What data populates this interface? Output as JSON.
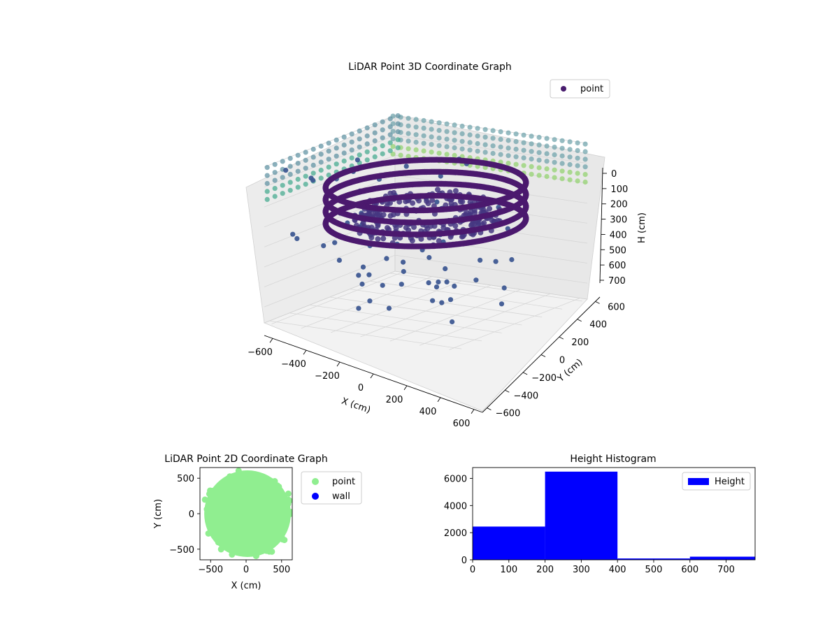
{
  "figure": {
    "background": "#ffffff"
  },
  "chart_data": [
    {
      "type": "scatter",
      "projection": "3d",
      "title": "LiDAR Point 3D Coordinate Graph",
      "xlabel": "X (cm)",
      "ylabel": "Y (cm)",
      "zlabel": "H (cm)",
      "x_ticks": [
        -600,
        -400,
        -200,
        0,
        200,
        400,
        600
      ],
      "y_ticks": [
        -600,
        -400,
        -200,
        0,
        200,
        400,
        600
      ],
      "z_ticks": [
        0,
        100,
        200,
        300,
        400,
        500,
        600,
        700
      ],
      "xlim": [
        -650,
        650
      ],
      "ylim": [
        -650,
        650
      ],
      "zlim": [
        0,
        780
      ],
      "z_axis_inverted": true,
      "colormap": "viridis",
      "legend": {
        "entries": [
          "point"
        ],
        "placement": "upper-right",
        "marker_color": "#481c6e"
      },
      "series": [
        {
          "name": "point",
          "shape": "ring",
          "radius": 560,
          "height_range": [
            150,
            330
          ],
          "color": "#4b1a6e"
        },
        {
          "name": "point",
          "shape": "ring",
          "radius": 420,
          "height_range": [
            260,
            360
          ],
          "color": "#453781"
        },
        {
          "name": "point",
          "shape": "scattered",
          "height_range": [
            0,
            700
          ],
          "color": "#3e5892"
        },
        {
          "name": "point",
          "shape": "wall-columns",
          "height_range": [
            0,
            200
          ],
          "color": "#6a9fa8"
        }
      ]
    },
    {
      "type": "scatter",
      "title": "LiDAR Point 2D Coordinate Graph",
      "xlabel": "X (cm)",
      "ylabel": "Y (cm)",
      "x_ticks": [
        -500,
        0,
        500
      ],
      "y_ticks": [
        -500,
        0,
        500
      ],
      "xlim": [
        -650,
        650
      ],
      "ylim": [
        -650,
        650
      ],
      "legend": {
        "placement": "outside-right",
        "entries": [
          {
            "name": "point",
            "color": "#90ee90"
          },
          {
            "name": "wall",
            "color": "#0000ff"
          }
        ]
      },
      "series": [
        {
          "name": "point",
          "color": "#90ee90",
          "shape": "filled-disc",
          "center": [
            20,
            0
          ],
          "radius": 610
        },
        {
          "name": "wall",
          "color": "#0000ff",
          "values": []
        }
      ]
    },
    {
      "type": "bar",
      "subtype": "histogram",
      "title": "Height Histogram",
      "xlabel": "",
      "ylabel": "",
      "bin_edges": [
        0,
        200,
        400,
        600,
        780
      ],
      "values": [
        2450,
        6500,
        100,
        230
      ],
      "x_ticks": [
        0,
        100,
        200,
        300,
        400,
        500,
        600,
        700
      ],
      "y_ticks": [
        0,
        2000,
        4000,
        6000
      ],
      "xlim": [
        0,
        780
      ],
      "ylim": [
        0,
        6800
      ],
      "color": "#0000ff",
      "legend": {
        "entries": [
          "Height"
        ],
        "placement": "upper-right"
      }
    }
  ]
}
